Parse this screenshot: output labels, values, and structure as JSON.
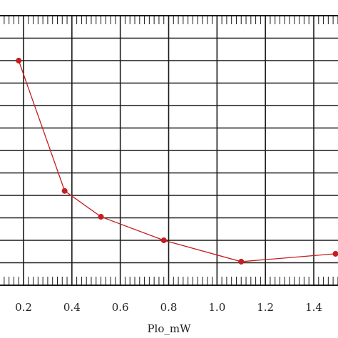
{
  "chart_data": {
    "type": "line",
    "title": "",
    "xlabel": "Plo_mW",
    "ylabel": "",
    "xlim": [
      0.0,
      1.5
    ],
    "ylim": [
      0,
      12
    ],
    "x_ticks": [
      0.2,
      0.4,
      0.6,
      0.8,
      1.0,
      1.2,
      1.4
    ],
    "x_tick_labels": [
      "0.2",
      "0.4",
      "0.6",
      "0.8",
      "1.0",
      "1.2",
      "1.4"
    ],
    "grid": true,
    "minor_ticks": true,
    "series": [
      {
        "color": "#c41e1e",
        "marker": "circle",
        "x": [
          0.18,
          0.37,
          0.52,
          0.78,
          1.1,
          1.49
        ],
        "y": [
          10.0,
          4.2,
          3.05,
          2.0,
          1.05,
          1.4
        ]
      }
    ],
    "colors": {
      "line": "#c41e1e",
      "grid": "#1a1a1a",
      "frame": "#1a1a1a"
    }
  }
}
